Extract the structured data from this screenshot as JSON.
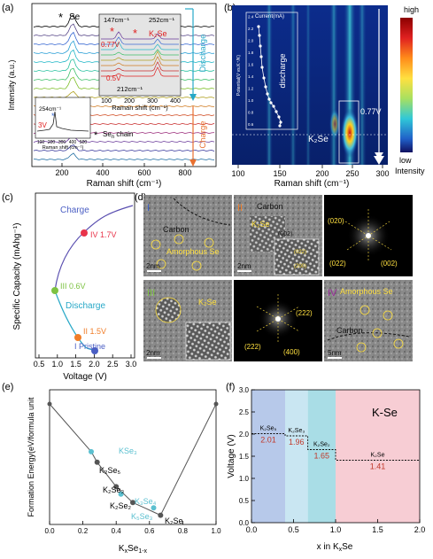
{
  "figure": {
    "panel_labels": {
      "a": "(a)",
      "b": "(b)",
      "c": "(c)",
      "d": "(d)",
      "e": "(e)",
      "f": "(f)"
    }
  },
  "panel_a": {
    "ylabel": "Intensity (a.u.)",
    "xlabel": "Raman shift (cm⁻¹)",
    "xticks": [
      "200",
      "400",
      "600",
      "800"
    ],
    "se_label": "Se",
    "sen_label": "Se",
    "sen_sub": "n",
    "sen_suffix": " chain",
    "star": "*",
    "charge_label": "Charge",
    "discharge_label": "Discharge",
    "inset_top": {
      "peak147": "147cm⁻¹",
      "peak252": "252cm⁻¹",
      "k2se": "K₂Se",
      "v077": "0.77V",
      "v05": "0.5V",
      "peak212": "212cm⁻¹",
      "xlabel": "Raman shift (cm⁻¹)",
      "xticks": [
        "100",
        "200",
        "300",
        "400"
      ]
    },
    "inset_bottom": {
      "peak254": "254cm⁻¹",
      "v3": "3V",
      "xlabel": "Raman shift (cm⁻¹)",
      "xticks": [
        "100",
        "200",
        "300",
        "400",
        "500"
      ]
    },
    "colors": [
      "#000000",
      "#5a4a8a",
      "#3c6bd3",
      "#2a9fd6",
      "#25b8c8",
      "#2bc1a0",
      "#3ec06a",
      "#7fbf2a",
      "#b0a020",
      "#d07a20",
      "#d04a20",
      "#c82a2a",
      "#9a2a7a",
      "#6a3a9a",
      "#333399",
      "#1a6aa0"
    ]
  },
  "panel_b": {
    "xlabel": "Raman shift (cm⁻¹)",
    "xticks": [
      "100",
      "150",
      "200",
      "250",
      "300"
    ],
    "inset_title": "Current(mA)",
    "inset_ylabel": "Potential(V vs.K⁺/K)",
    "inset_yticks": [
      "0.6",
      "0.8",
      "1.0",
      "1.2",
      "1.4",
      "1.6",
      "1.8",
      "2.0",
      "2.2",
      "2.4"
    ],
    "discharge": "discharge",
    "k2se": "K₂Se",
    "v077": "0.77V",
    "cbar_high": "high",
    "cbar_low": "low",
    "cbar_label": "Intensity"
  },
  "panel_c": {
    "ylabel": "Specific Capacity (mAhg⁻¹)",
    "xlabel": "Voltage (V)",
    "xticks": [
      "0.5",
      "1.0",
      "1.5",
      "2.0",
      "2.5",
      "3.0"
    ],
    "charge": "Charge",
    "discharge": "Discharge",
    "points": [
      {
        "label": "IV 1.7V",
        "color": "#e8334a"
      },
      {
        "label": "III 0.6V",
        "color": "#7dc242"
      },
      {
        "label": "II 1.5V",
        "color": "#f07d28"
      },
      {
        "label": "I Pristine",
        "color": "#4b5fc4"
      }
    ]
  },
  "panel_d": {
    "tile1": {
      "num": "I",
      "carbon": "Carbon",
      "amorph": "Amorphous Se",
      "scale": "2nm"
    },
    "tile2": {
      "num": "II",
      "carbon": "Carbon",
      "k2se": "K₂Se",
      "d002": "(002)",
      "d022": "(022)",
      "d200": "(200)",
      "scale": "2nm"
    },
    "tile3": {
      "labels": [
        "(020)",
        "(022)",
        "(002)"
      ]
    },
    "tile4": {
      "num": "III",
      "k2se": "K₂Se",
      "scale": "2nm"
    },
    "tile5": {
      "labels": [
        "(222)",
        "(222)",
        "(400)"
      ]
    },
    "tile6": {
      "num": "IV",
      "amorph": "Amorphous Se",
      "carbon": "Carbon",
      "scale": "5nm"
    }
  },
  "panel_e": {
    "ylabel": "Formation Energy(eV/formula unit",
    "xlabel": "K",
    "xlabel_sub1": "x",
    "xlabel_mid": "Se",
    "xlabel_sub2": "1-x",
    "xticks": [
      "0.0",
      "0.2",
      "0.4",
      "0.6",
      "0.8",
      "1.0"
    ],
    "labels": {
      "kse3": "KSe₃",
      "k2se5": "K₂Se₅",
      "k2se3": "K₂Se₃",
      "k2se2": "K₂Se₂",
      "k5se3": "K₅Se₃",
      "k5se4": "K₅Se₄",
      "k2se": "K₂Se",
      "k3se4": "K₃Se₄"
    },
    "chart_data": {
      "type": "scatter",
      "xlabel": "KxSe1-x",
      "ylabel": "Formation Energy(eV/formula unit",
      "xlim": [
        0.0,
        1.0
      ],
      "hull": {
        "x": [
          0.0,
          0.25,
          0.2857,
          0.4,
          0.5,
          0.5714,
          0.625,
          0.6667,
          1.0
        ],
        "y": [
          0.0,
          -0.45,
          -0.55,
          -0.78,
          -0.93,
          -0.98,
          -1.02,
          -1.05,
          0.0
        ]
      },
      "points": [
        {
          "name": "KSe3",
          "x": 0.25,
          "y": -0.45,
          "color": "#5bc0d0"
        },
        {
          "name": "K2Se5",
          "x": 0.2857,
          "y": -0.55,
          "color": "#555555"
        },
        {
          "name": "K2Se3",
          "x": 0.4,
          "y": -0.78,
          "color": "#555555"
        },
        {
          "name": "K2Se2",
          "x": 0.5,
          "y": -0.93,
          "color": "#555555"
        },
        {
          "name": "K5Se3",
          "x": 0.625,
          "y": -0.98,
          "color": "#5bc0d0"
        },
        {
          "name": "K3Se4",
          "x": 0.4286,
          "y": -0.85,
          "color": "#5bc0d0"
        },
        {
          "name": "K2Se",
          "x": 0.6667,
          "y": -1.05,
          "color": "#555555"
        }
      ]
    }
  },
  "panel_f": {
    "title": "K-Se",
    "ylabel": "Voltage (V)",
    "xlabel": "x in K",
    "xlabel_sub": "x",
    "xlabel_end": "Se",
    "xticks": [
      "0.0",
      "0.5",
      "1.0",
      "1.5",
      "2.0"
    ],
    "yticks": [
      "0.0",
      "0.5",
      "1.0",
      "1.5",
      "2.0",
      "2.5",
      "3.0"
    ],
    "chart_data": {
      "type": "line",
      "xlabel": "x in KxSe",
      "ylabel": "Voltage (V)",
      "xlim": [
        0.0,
        2.0
      ],
      "ylim": [
        0.0,
        3.0
      ],
      "steps": [
        {
          "name": "K2Se5",
          "x0": 0.0,
          "x1": 0.4,
          "v": 2.01,
          "label": "2.01"
        },
        {
          "name": "K2Se3",
          "x0": 0.4,
          "x1": 0.67,
          "v": 1.96,
          "label": "1.96"
        },
        {
          "name": "K2Se2",
          "x0": 0.67,
          "x1": 1.0,
          "v": 1.65,
          "label": "1.65"
        },
        {
          "name": "K2Se",
          "x0": 1.0,
          "x1": 2.0,
          "v": 1.41,
          "label": "1.41"
        }
      ],
      "bands": [
        {
          "x0": 0.0,
          "x1": 0.4,
          "color": "#b7c9ea"
        },
        {
          "x0": 0.4,
          "x1": 0.67,
          "color": "#c9e6f2"
        },
        {
          "x0": 0.67,
          "x1": 1.0,
          "color": "#a9dde6"
        },
        {
          "x0": 1.0,
          "x1": 2.0,
          "color": "#f7cdd4"
        }
      ]
    }
  }
}
